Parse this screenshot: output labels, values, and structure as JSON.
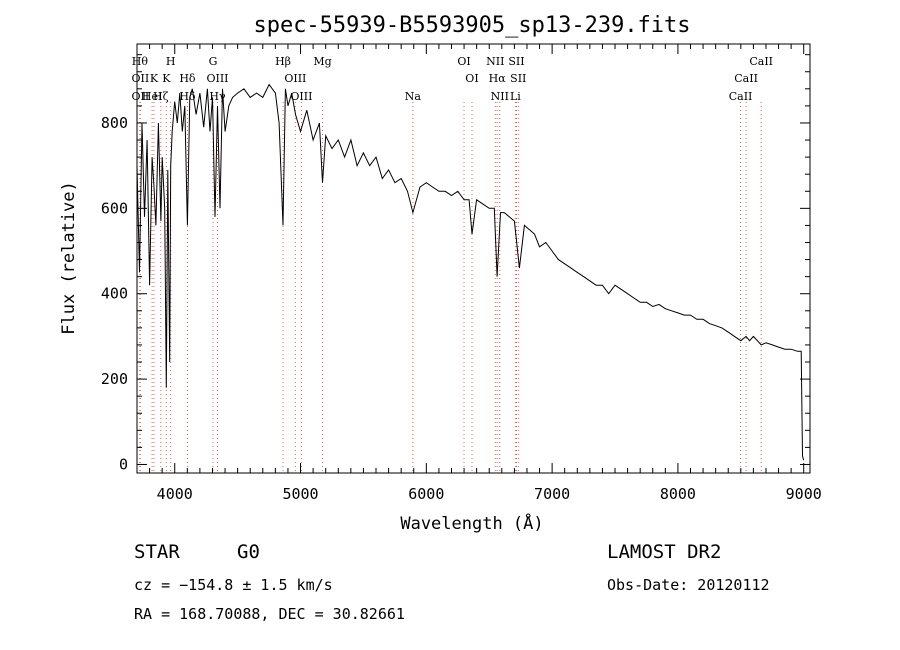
{
  "chart_data": {
    "type": "line",
    "title": "spec-55939-B5593905_sp13-239.fits",
    "xlabel": "Wavelength (Å)",
    "ylabel": "Flux (relative)",
    "xlim": [
      3700,
      9050
    ],
    "ylim": [
      -20,
      985
    ],
    "x_ticks": [
      4000,
      5000,
      6000,
      7000,
      8000,
      9000
    ],
    "y_ticks": [
      0,
      200,
      400,
      600,
      800
    ],
    "grid": false,
    "line_color": "#000000",
    "marker_color": "#e06060",
    "series": [
      {
        "x": [
          3700,
          3720,
          3740,
          3760,
          3780,
          3800,
          3820,
          3835,
          3850,
          3870,
          3890,
          3900,
          3920,
          3933,
          3945,
          3960,
          3968,
          3980,
          4000,
          4020,
          4040,
          4060,
          4080,
          4101,
          4120,
          4140,
          4170,
          4200,
          4230,
          4260,
          4280,
          4300,
          4320,
          4340,
          4360,
          4380,
          4400,
          4430,
          4460,
          4500,
          4550,
          4600,
          4650,
          4700,
          4750,
          4800,
          4830,
          4861,
          4880,
          4900,
          4930,
          4960,
          5000,
          5050,
          5100,
          5150,
          5175,
          5200,
          5250,
          5300,
          5350,
          5400,
          5450,
          5500,
          5550,
          5600,
          5650,
          5700,
          5750,
          5800,
          5850,
          5893,
          5950,
          6000,
          6050,
          6100,
          6150,
          6200,
          6250,
          6300,
          6340,
          6363,
          6400,
          6450,
          6500,
          6540,
          6563,
          6590,
          6620,
          6660,
          6700,
          6740,
          6780,
          6820,
          6860,
          6900,
          6950,
          7000,
          7050,
          7100,
          7150,
          7200,
          7250,
          7300,
          7350,
          7400,
          7450,
          7500,
          7550,
          7600,
          7650,
          7700,
          7750,
          7800,
          7850,
          7900,
          7950,
          8000,
          8050,
          8100,
          8150,
          8200,
          8250,
          8300,
          8350,
          8400,
          8450,
          8500,
          8542,
          8570,
          8600,
          8662,
          8700,
          8750,
          8800,
          8850,
          8900,
          8950,
          8980,
          8990,
          9000
        ],
        "y": [
          700,
          450,
          800,
          580,
          760,
          420,
          720,
          650,
          560,
          800,
          570,
          720,
          600,
          180,
          690,
          240,
          700,
          780,
          850,
          800,
          870,
          780,
          840,
          560,
          860,
          880,
          820,
          870,
          790,
          880,
          780,
          860,
          580,
          840,
          600,
          880,
          780,
          840,
          860,
          870,
          880,
          860,
          870,
          860,
          890,
          870,
          800,
          560,
          880,
          840,
          870,
          820,
          780,
          830,
          760,
          800,
          660,
          770,
          740,
          760,
          720,
          760,
          700,
          730,
          700,
          720,
          670,
          690,
          660,
          670,
          640,
          590,
          650,
          660,
          650,
          640,
          640,
          630,
          640,
          620,
          620,
          540,
          620,
          610,
          600,
          600,
          440,
          590,
          590,
          580,
          570,
          460,
          560,
          550,
          540,
          510,
          520,
          500,
          480,
          470,
          460,
          450,
          440,
          430,
          420,
          420,
          400,
          420,
          410,
          400,
          390,
          380,
          380,
          370,
          375,
          365,
          360,
          355,
          350,
          350,
          340,
          340,
          330,
          325,
          320,
          310,
          300,
          290,
          300,
          290,
          300,
          280,
          285,
          280,
          275,
          270,
          270,
          265,
          265,
          20,
          10
        ]
      }
    ],
    "lines": [
      {
        "x": 3723,
        "label": "Hθ",
        "row": 0
      },
      {
        "x": 3727,
        "label": "OII",
        "row": 1
      },
      {
        "x": 3727,
        "label": "OII",
        "row": 2
      },
      {
        "x": 3820,
        "label": "HeI",
        "row": 2
      },
      {
        "x": 3835,
        "label": "K",
        "row": 1
      },
      {
        "x": 3889,
        "label": "Hζ",
        "row": 2
      },
      {
        "x": 3933,
        "label": "K",
        "row": 1
      },
      {
        "x": 3968,
        "label": "H",
        "row": 0
      },
      {
        "x": 4101,
        "label": "Hδ",
        "row": 1
      },
      {
        "x": 4101,
        "label": "Hδ",
        "row": 2
      },
      {
        "x": 4304,
        "label": "G",
        "row": 0
      },
      {
        "x": 4340,
        "label": "OIII",
        "row": 1
      },
      {
        "x": 4340,
        "label": "Hγ",
        "row": 2
      },
      {
        "x": 4861,
        "label": "Hβ",
        "row": 0
      },
      {
        "x": 4959,
        "label": "OIII",
        "row": 1
      },
      {
        "x": 5007,
        "label": "OIII",
        "row": 2
      },
      {
        "x": 5175,
        "label": "Mg",
        "row": 0
      },
      {
        "x": 5893,
        "label": "Na",
        "row": 2
      },
      {
        "x": 6300,
        "label": "OI",
        "row": 0
      },
      {
        "x": 6363,
        "label": "OI",
        "row": 1
      },
      {
        "x": 6548,
        "label": "NII",
        "row": 0
      },
      {
        "x": 6563,
        "label": "Hα",
        "row": 1
      },
      {
        "x": 6584,
        "label": "NII",
        "row": 2
      },
      {
        "x": 6717,
        "label": "SII",
        "row": 0
      },
      {
        "x": 6731,
        "label": "SII",
        "row": 1
      },
      {
        "x": 6708,
        "label": "Li",
        "row": 2
      },
      {
        "x": 8498,
        "label": "CaII",
        "row": 2
      },
      {
        "x": 8542,
        "label": "CaII",
        "row": 1
      },
      {
        "x": 8662,
        "label": "CaII",
        "row": 0
      }
    ]
  },
  "info": {
    "object_type": "STAR",
    "subclass": "G0",
    "survey": "LAMOST DR2",
    "cz": "cz = −154.8 ± 1.5 km/s",
    "obs_date": "Obs-Date: 20120112",
    "coords": "RA = 168.70088, DEC =  30.82661"
  }
}
